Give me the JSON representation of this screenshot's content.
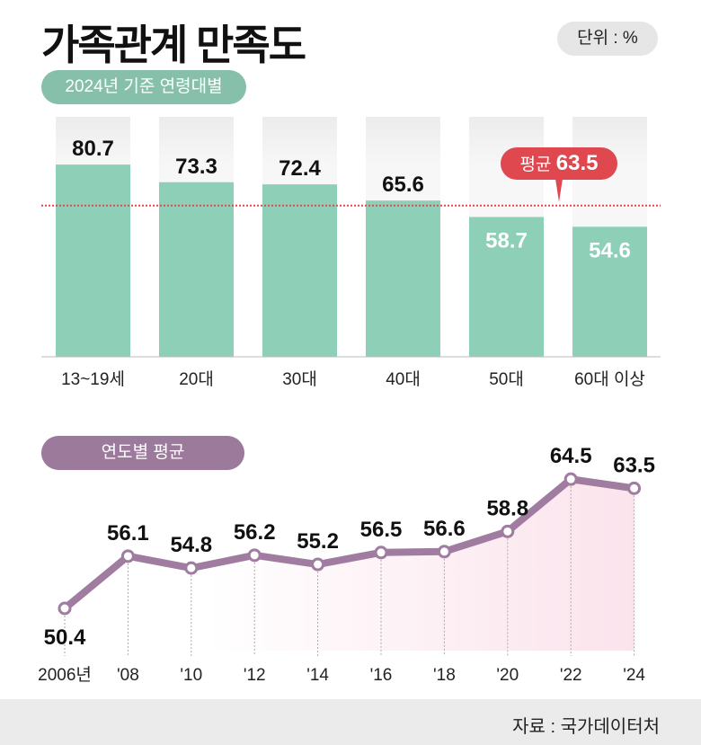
{
  "title": "가족관계 만족도",
  "unit_label": "단위 : %",
  "source": "자료 : 국가데이터처",
  "colors": {
    "bar": "#8ecfb8",
    "avg_line": "#e0484f",
    "line": "#a07ca0",
    "area": "#fbe3ec"
  },
  "chart_data": [
    {
      "type": "bar",
      "title": "2024년 기준 연령대별",
      "categories": [
        "13~19세",
        "20대",
        "30대",
        "40대",
        "50대",
        "60대 이상"
      ],
      "values": [
        80.7,
        73.3,
        72.4,
        65.6,
        58.7,
        54.6
      ],
      "average": {
        "label": "평균",
        "value": 63.5
      },
      "ylim": [
        0,
        100
      ],
      "grid": false
    },
    {
      "type": "line",
      "title": "연도별 평균",
      "categories": [
        "2006년",
        "'08",
        "'10",
        "'12",
        "'14",
        "'16",
        "'18",
        "'20",
        "'22",
        "'24"
      ],
      "values": [
        50.4,
        56.1,
        54.8,
        56.2,
        55.2,
        56.5,
        56.6,
        58.8,
        64.5,
        63.5
      ],
      "grid": false
    }
  ]
}
